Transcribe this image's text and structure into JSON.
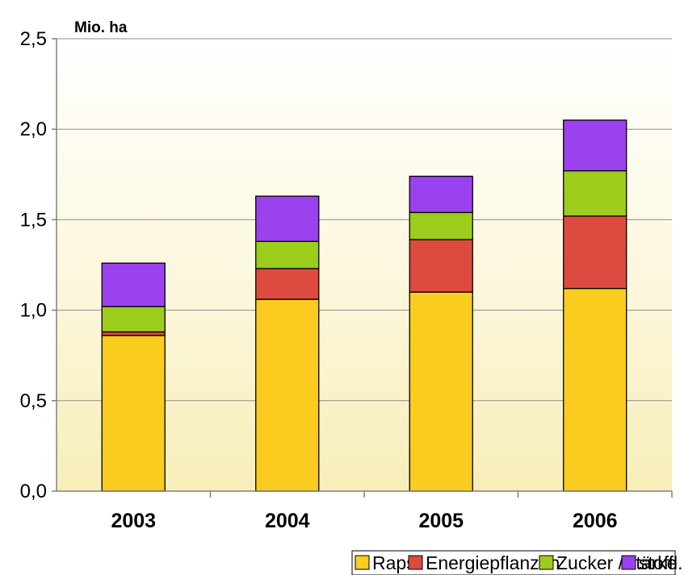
{
  "chart_data": {
    "type": "bar",
    "stacked": true,
    "unit_label": "Mio. ha",
    "categories": [
      "2003",
      "2004",
      "2005",
      "2006"
    ],
    "series": [
      {
        "name": "Raps",
        "color": "#f9cc1f",
        "values": [
          0.86,
          1.06,
          1.1,
          1.12
        ]
      },
      {
        "name": "Energiepflanzen",
        "color": "#dd4a3f",
        "values": [
          0.02,
          0.17,
          0.29,
          0.4
        ]
      },
      {
        "name": "Zucker /Stärke",
        "color": "#9ccc1c",
        "values": [
          0.14,
          0.15,
          0.15,
          0.25
        ]
      },
      {
        "name": "stoffl. Nutzung",
        "color": "#9a42ed",
        "values": [
          0.24,
          0.25,
          0.2,
          0.28
        ]
      }
    ],
    "ylim": [
      0,
      2.5
    ],
    "yticks": [
      "0,0",
      "0,5",
      "1,0",
      "1,5",
      "2,0",
      "2,5"
    ],
    "ytick_values": [
      0,
      0.5,
      1.0,
      1.5,
      2.0,
      2.5
    ],
    "grid": true,
    "legend_position": "bottom",
    "background": "gradient light yellow"
  }
}
